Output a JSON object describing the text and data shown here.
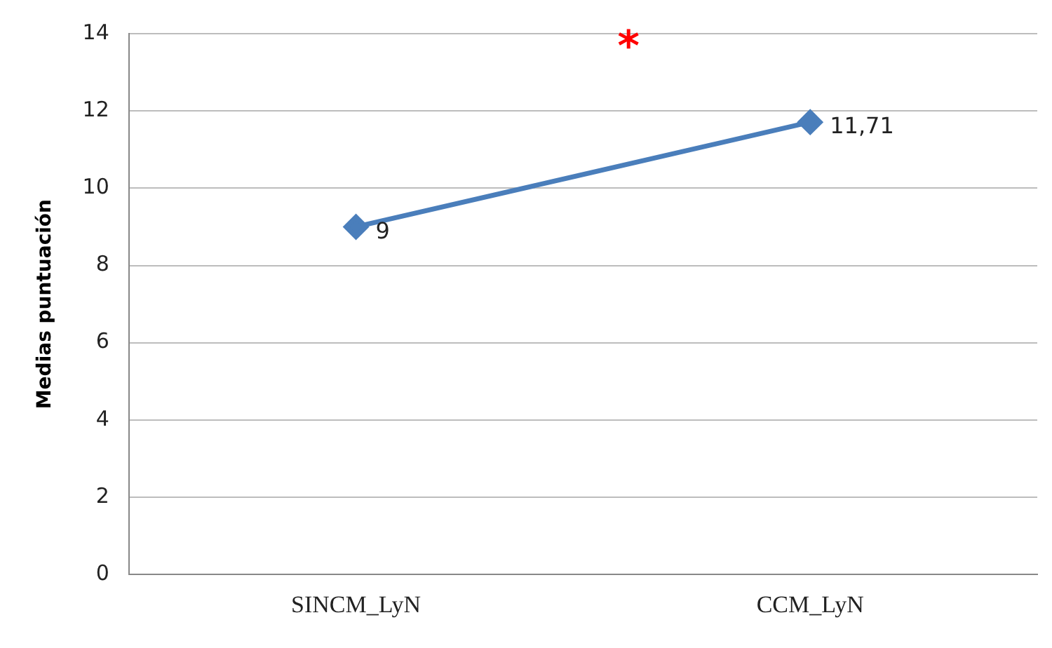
{
  "chart_data": {
    "type": "line",
    "ylabel": "Medias puntuación",
    "categories": [
      "SINCM_LyN",
      "CCM_LyN"
    ],
    "series": [
      {
        "color": "#4a7ebb",
        "values": [
          9,
          11.71
        ],
        "value_labels": [
          "9",
          "11,71"
        ]
      }
    ],
    "ylim": [
      0,
      14
    ],
    "yticks": [
      0,
      2,
      4,
      6,
      8,
      10,
      12,
      14
    ],
    "grid": "y",
    "legend": false,
    "marker": "diamond",
    "line_style": "solid",
    "annotations": [
      "*"
    ]
  }
}
